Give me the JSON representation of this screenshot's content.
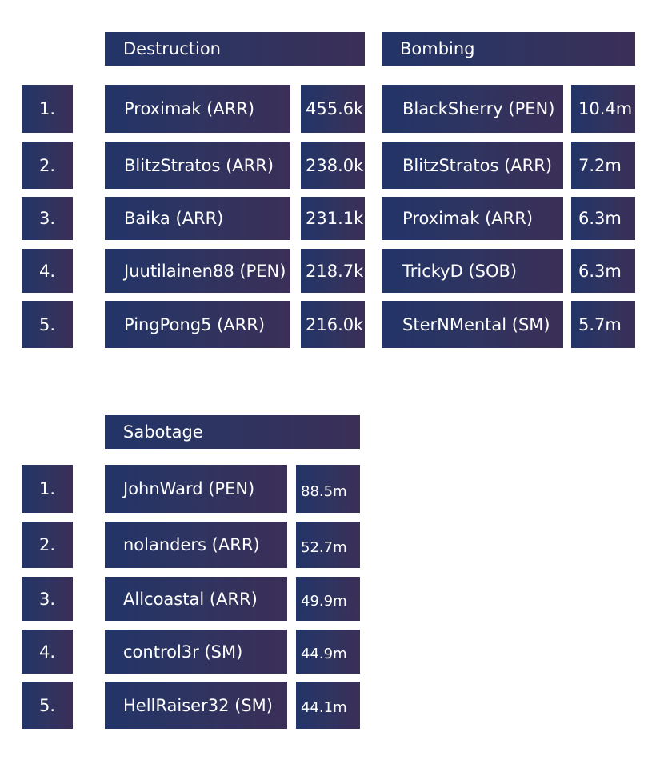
{
  "ranks": [
    "1.",
    "2.",
    "3.",
    "4.",
    "5."
  ],
  "destruction": {
    "title": "Destruction",
    "entries": [
      {
        "name": "Proximak (ARR)",
        "value": "455.6k"
      },
      {
        "name": "BlitzStratos (ARR)",
        "value": "238.0k"
      },
      {
        "name": "Baika (ARR)",
        "value": "231.1k"
      },
      {
        "name": "Juutilainen88 (PEN)",
        "value": "218.7k"
      },
      {
        "name": "PingPong5 (ARR)",
        "value": "216.0k"
      }
    ]
  },
  "bombing": {
    "title": "Bombing",
    "entries": [
      {
        "name": "BlackSherry (PEN)",
        "value": "10.4m"
      },
      {
        "name": "BlitzStratos (ARR)",
        "value": "7.2m"
      },
      {
        "name": "Proximak (ARR)",
        "value": "6.3m"
      },
      {
        "name": "TrickyD (SOB)",
        "value": "6.3m"
      },
      {
        "name": "SterNMental (SM)",
        "value": "5.7m"
      }
    ]
  },
  "sabotage": {
    "title": "Sabotage",
    "entries": [
      {
        "name": "JohnWard (PEN)",
        "value": "88.5m"
      },
      {
        "name": "nolanders (ARR)",
        "value": "52.7m"
      },
      {
        "name": "Allcoastal (ARR)",
        "value": "49.9m"
      },
      {
        "name": "control3r (SM)",
        "value": "44.9m"
      },
      {
        "name": "HellRaiser32 (SM)",
        "value": "44.1m"
      }
    ]
  }
}
